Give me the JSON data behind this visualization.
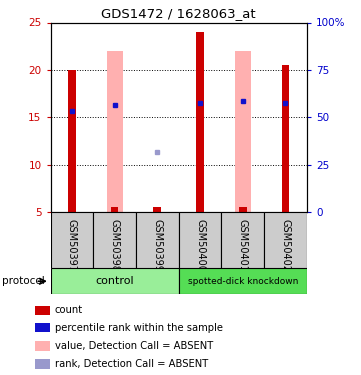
{
  "title": "GDS1472 / 1628063_at",
  "samples": [
    "GSM50397",
    "GSM50398",
    "GSM50399",
    "GSM50400",
    "GSM50401",
    "GSM50402"
  ],
  "ylim_left": [
    5,
    25
  ],
  "ylim_right": [
    0,
    100
  ],
  "yticks_left": [
    5,
    10,
    15,
    20,
    25
  ],
  "yticks_right": [
    0,
    25,
    50,
    75,
    100
  ],
  "red_bar_bottom": 5,
  "red_bars": [
    20.0,
    5.5,
    5.5,
    24.0,
    5.5,
    20.5
  ],
  "pink_bars_present": [
    false,
    true,
    false,
    false,
    true,
    false
  ],
  "pink_bar_top": [
    0,
    22.0,
    0,
    0,
    22.0,
    0
  ],
  "blue_squares_present": [
    true,
    true,
    false,
    true,
    true,
    true
  ],
  "blue_square_y": [
    15.7,
    16.3,
    0,
    16.5,
    16.7,
    16.5
  ],
  "light_blue_present": [
    false,
    false,
    true,
    false,
    false,
    false
  ],
  "light_blue_y": [
    0,
    0,
    11.3,
    0,
    0,
    0
  ],
  "pink_bar_width": 0.38,
  "red_bar_width": 0.18,
  "colors": {
    "red_bar": "#cc0000",
    "pink_bar": "#ffb0b0",
    "blue_square": "#1111cc",
    "light_blue_square": "#9999cc",
    "control_bg": "#99ee99",
    "knockdown_bg": "#55dd55",
    "sample_bg": "#cccccc",
    "tick_left": "#cc0000",
    "tick_right": "#0000cc"
  },
  "legend_labels": [
    "count",
    "percentile rank within the sample",
    "value, Detection Call = ABSENT",
    "rank, Detection Call = ABSENT"
  ],
  "legend_colors": [
    "#cc0000",
    "#1111cc",
    "#ffb0b0",
    "#9999cc"
  ]
}
